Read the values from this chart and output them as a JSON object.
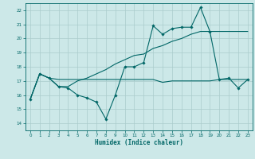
{
  "xlabel": "Humidex (Indice chaleur)",
  "bg_color": "#cce8e8",
  "grid_color": "#aacccc",
  "line_color": "#006666",
  "xlim": [
    -0.5,
    23.5
  ],
  "ylim": [
    13.5,
    22.5
  ],
  "yticks": [
    14,
    15,
    16,
    17,
    18,
    19,
    20,
    21,
    22
  ],
  "xticks": [
    0,
    1,
    2,
    3,
    4,
    5,
    6,
    7,
    8,
    9,
    10,
    11,
    12,
    13,
    14,
    15,
    16,
    17,
    18,
    19,
    20,
    21,
    22,
    23
  ],
  "series1_x": [
    0,
    1,
    2,
    3,
    4,
    5,
    6,
    7,
    8,
    9,
    10,
    11,
    12,
    13,
    14,
    15,
    16,
    17,
    18,
    19,
    20,
    21,
    22,
    23
  ],
  "series1_y": [
    15.7,
    17.5,
    17.2,
    16.6,
    16.5,
    16.0,
    15.8,
    15.5,
    14.3,
    16.0,
    18.0,
    18.0,
    18.3,
    20.9,
    20.3,
    20.7,
    20.8,
    20.8,
    22.2,
    20.5,
    17.1,
    17.2,
    16.5,
    17.1
  ],
  "series2_x": [
    0,
    1,
    2,
    3,
    4,
    5,
    6,
    7,
    8,
    9,
    10,
    11,
    12,
    13,
    14,
    15,
    16,
    17,
    18,
    19,
    20,
    21,
    22,
    23
  ],
  "series2_y": [
    15.7,
    17.5,
    17.2,
    17.1,
    17.1,
    17.1,
    17.1,
    17.1,
    17.1,
    17.1,
    17.1,
    17.1,
    17.1,
    17.1,
    16.9,
    17.0,
    17.0,
    17.0,
    17.0,
    17.0,
    17.1,
    17.1,
    17.1,
    17.1
  ],
  "series3_x": [
    0,
    1,
    2,
    3,
    4,
    5,
    6,
    7,
    8,
    9,
    10,
    11,
    12,
    13,
    14,
    15,
    16,
    17,
    18,
    19,
    20,
    21,
    22,
    23
  ],
  "series3_y": [
    15.7,
    17.5,
    17.2,
    16.6,
    16.6,
    17.0,
    17.2,
    17.5,
    17.8,
    18.2,
    18.5,
    18.8,
    18.9,
    19.3,
    19.5,
    19.8,
    20.0,
    20.3,
    20.5,
    20.5,
    20.5,
    20.5,
    20.5,
    20.5
  ]
}
